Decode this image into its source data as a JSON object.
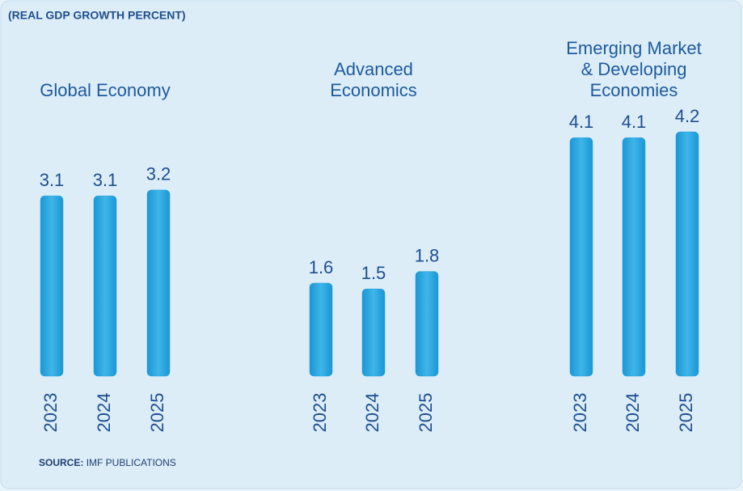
{
  "subtitle": "(REAL GDP GROWTH PERCENT)",
  "source_label": "SOURCE:",
  "source": "IMF PUBLICATIONS",
  "chart_data": [
    {
      "type": "bar",
      "title": [
        "Global Economy"
      ],
      "categories": [
        "2023",
        "2024",
        "2025"
      ],
      "values": [
        3.1,
        3.1,
        3.2
      ],
      "color": "#22a3dd"
    },
    {
      "type": "bar",
      "title": [
        "Advanced",
        "Economics"
      ],
      "categories": [
        "2023",
        "2024",
        "2025"
      ],
      "values": [
        1.6,
        1.5,
        1.8
      ],
      "color": "#22a3dd"
    },
    {
      "type": "bar",
      "title": [
        "Emerging Market",
        "& Developing",
        "Economies"
      ],
      "categories": [
        "2023",
        "2024",
        "2025"
      ],
      "values": [
        4.1,
        4.1,
        4.2
      ],
      "color": "#22a3dd"
    }
  ]
}
